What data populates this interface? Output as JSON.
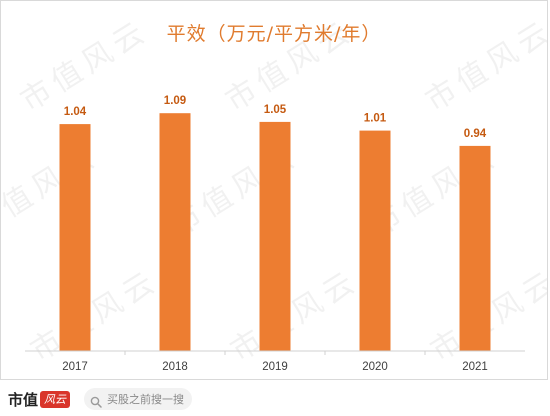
{
  "chart_data": {
    "type": "bar",
    "title": "平效（万元/平方米/年）",
    "categories": [
      "2017",
      "2018",
      "2019",
      "2020",
      "2021"
    ],
    "values": [
      1.04,
      1.09,
      1.05,
      1.01,
      0.94
    ],
    "data_labels": [
      "1.04",
      "1.09",
      "1.05",
      "1.01",
      "0.94"
    ],
    "xlabel": "",
    "ylabel": "",
    "ylim": [
      0,
      1.1
    ],
    "grid": false,
    "legend": "none",
    "bar_color": "#ED7D31",
    "label_color": "#C55A11",
    "title_color": "#E07B2E"
  },
  "watermark": {
    "text": "市值风云"
  },
  "footer": {
    "logo_text": "市值",
    "logo_seal_text": "风云",
    "search_placeholder": "买股之前搜一搜",
    "search_icon": "search-icon"
  }
}
